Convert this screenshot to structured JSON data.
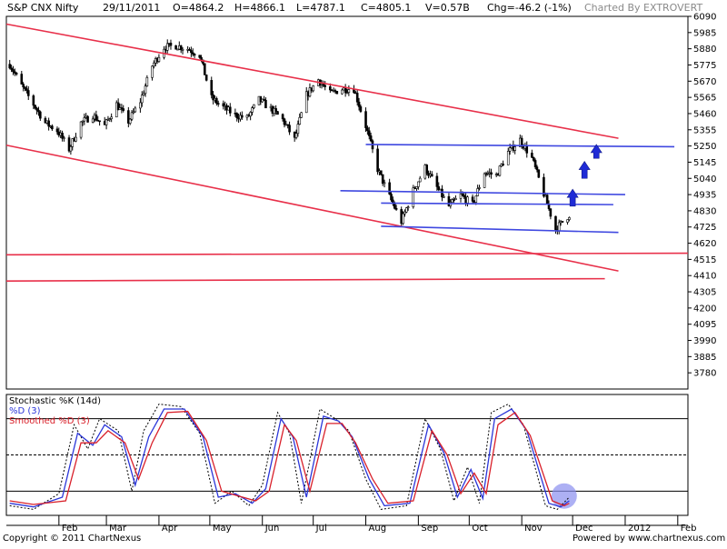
{
  "header": {
    "symbol": "S&P CNX Nifty",
    "date": "29/11/2011",
    "open": "O=4864.2",
    "high": "H=4866.1",
    "low": "L=4787.1",
    "close": "C=4805.1",
    "volume": "V=0.57B",
    "change": "Chg=-46.2 (-1%)",
    "credit": "Charted By EXTROVERT"
  },
  "footer": {
    "copyright": "Copyright © 2011 ChartNexus",
    "powered": "Powered by www.chartnexus.com"
  },
  "chart_data": [
    {
      "type": "candlestick",
      "ylim": [
        3675,
        6090
      ],
      "y_ticks": [
        3780,
        3885,
        3990,
        4095,
        4200,
        4305,
        4410,
        4515,
        4620,
        4725,
        4830,
        4935,
        5040,
        5145,
        5250,
        5355,
        5460,
        5565,
        5670,
        5775,
        5880,
        5985,
        6090
      ],
      "x_ticks": [
        "Feb",
        "Mar",
        "Apr",
        "May",
        "Jun",
        "Jul",
        "Aug",
        "Sep",
        "Oct",
        "Nov",
        "Dec",
        "2012",
        "Feb"
      ],
      "grid": false,
      "price_path": [
        [
          "2011-01-03",
          5780
        ],
        [
          "2011-01-10",
          5640
        ],
        [
          "2011-01-17",
          5520
        ],
        [
          "2011-01-24",
          5400
        ],
        [
          "2011-01-31",
          5350
        ],
        [
          "2011-02-07",
          5230
        ],
        [
          "2011-02-14",
          5400
        ],
        [
          "2011-02-21",
          5450
        ],
        [
          "2011-02-28",
          5380
        ],
        [
          "2011-03-07",
          5520
        ],
        [
          "2011-03-14",
          5410
        ],
        [
          "2011-03-21",
          5540
        ],
        [
          "2011-03-28",
          5770
        ],
        [
          "2011-04-04",
          5890
        ],
        [
          "2011-04-11",
          5900
        ],
        [
          "2011-04-18",
          5880
        ],
        [
          "2011-04-25",
          5840
        ],
        [
          "2011-05-02",
          5560
        ],
        [
          "2011-05-09",
          5500
        ],
        [
          "2011-05-16",
          5450
        ],
        [
          "2011-05-23",
          5430
        ],
        [
          "2011-05-30",
          5550
        ],
        [
          "2011-06-06",
          5490
        ],
        [
          "2011-06-13",
          5420
        ],
        [
          "2011-06-20",
          5290
        ],
        [
          "2011-06-27",
          5580
        ],
        [
          "2011-07-04",
          5680
        ],
        [
          "2011-07-11",
          5590
        ],
        [
          "2011-07-18",
          5620
        ],
        [
          "2011-07-25",
          5620
        ],
        [
          "2011-08-01",
          5380
        ],
        [
          "2011-08-08",
          5100
        ],
        [
          "2011-08-15",
          4920
        ],
        [
          "2011-08-22",
          4760
        ],
        [
          "2011-08-29",
          4960
        ],
        [
          "2011-09-05",
          5110
        ],
        [
          "2011-09-12",
          4980
        ],
        [
          "2011-09-19",
          4860
        ],
        [
          "2011-09-26",
          4930
        ],
        [
          "2011-10-03",
          4870
        ],
        [
          "2011-10-10",
          5080
        ],
        [
          "2011-10-17",
          5060
        ],
        [
          "2011-10-24",
          5210
        ],
        [
          "2011-10-31",
          5290
        ],
        [
          "2011-11-07",
          5170
        ],
        [
          "2011-11-14",
          4940
        ],
        [
          "2011-11-21",
          4710
        ],
        [
          "2011-11-29",
          4805
        ]
      ],
      "trendlines": [
        {
          "color": "#e8304a",
          "from": [
            "2011-01-01",
            6040
          ],
          "to": [
            "2011-12-28",
            5300
          ]
        },
        {
          "color": "#e8304a",
          "from": [
            "2011-01-01",
            5255
          ],
          "to": [
            "2011-12-28",
            4440
          ]
        },
        {
          "color": "#e8304a",
          "from": [
            "2011-01-01",
            4545
          ],
          "to": [
            "2012-02-07",
            4555
          ]
        },
        {
          "color": "#e8304a",
          "from": [
            "2011-01-01",
            4375
          ],
          "to": [
            "2011-12-20",
            4390
          ]
        },
        {
          "color": "#3f48e0",
          "from": [
            "2011-08-01",
            5260
          ],
          "to": [
            "2012-01-30",
            5245
          ]
        },
        {
          "color": "#3f48e0",
          "from": [
            "2011-07-17",
            4960
          ],
          "to": [
            "2012-01-01",
            4935
          ]
        },
        {
          "color": "#3f48e0",
          "from": [
            "2011-08-10",
            4880
          ],
          "to": [
            "2011-12-25",
            4870
          ]
        },
        {
          "color": "#3f48e0",
          "from": [
            "2011-08-10",
            4730
          ],
          "to": [
            "2011-12-28",
            4690
          ]
        }
      ],
      "arrows": [
        {
          "date": "2011-12-01",
          "from": 4860,
          "to": 4970
        },
        {
          "date": "2011-12-08",
          "from": 5040,
          "to": 5150
        },
        {
          "date": "2011-12-15",
          "from": 5170,
          "to": 5260
        }
      ],
      "colors": {
        "candle": "#000000",
        "red_line": "#e8304a",
        "blue_line": "#3f48e0",
        "arrow": "#1f2bd6"
      }
    },
    {
      "type": "line",
      "legend": [
        "Stochastic %K (14d)",
        "%D (3)",
        "Smoothed %D (3)"
      ],
      "ylim": [
        0,
        100
      ],
      "reference_lines": [
        20,
        50,
        80
      ],
      "series": [
        {
          "color": "#000000",
          "dashed": true,
          "values": [
            [
              "2011-01-03",
              8
            ],
            [
              "2011-01-17",
              5
            ],
            [
              "2011-02-01",
              18
            ],
            [
              "2011-02-10",
              75
            ],
            [
              "2011-02-18",
              55
            ],
            [
              "2011-02-25",
              80
            ],
            [
              "2011-03-08",
              70
            ],
            [
              "2011-03-16",
              20
            ],
            [
              "2011-03-23",
              70
            ],
            [
              "2011-04-01",
              92
            ],
            [
              "2011-04-14",
              90
            ],
            [
              "2011-04-25",
              68
            ],
            [
              "2011-05-04",
              10
            ],
            [
              "2011-05-14",
              20
            ],
            [
              "2011-05-24",
              8
            ],
            [
              "2011-06-01",
              25
            ],
            [
              "2011-06-10",
              85
            ],
            [
              "2011-06-17",
              68
            ],
            [
              "2011-06-24",
              10
            ],
            [
              "2011-07-05",
              88
            ],
            [
              "2011-07-14",
              80
            ],
            [
              "2011-07-22",
              70
            ],
            [
              "2011-08-01",
              30
            ],
            [
              "2011-08-10",
              5
            ],
            [
              "2011-08-25",
              8
            ],
            [
              "2011-09-05",
              80
            ],
            [
              "2011-09-14",
              55
            ],
            [
              "2011-09-22",
              12
            ],
            [
              "2011-09-30",
              40
            ],
            [
              "2011-10-07",
              10
            ],
            [
              "2011-10-14",
              85
            ],
            [
              "2011-10-24",
              92
            ],
            [
              "2011-11-02",
              75
            ],
            [
              "2011-11-15",
              8
            ],
            [
              "2011-11-22",
              5
            ],
            [
              "2011-11-29",
              15
            ]
          ]
        },
        {
          "color": "#2b36d9",
          "dashed": false,
          "values": [
            [
              "2011-01-03",
              10
            ],
            [
              "2011-01-17",
              7
            ],
            [
              "2011-02-03",
              15
            ],
            [
              "2011-02-12",
              68
            ],
            [
              "2011-02-21",
              58
            ],
            [
              "2011-02-28",
              75
            ],
            [
              "2011-03-10",
              65
            ],
            [
              "2011-03-18",
              25
            ],
            [
              "2011-03-26",
              65
            ],
            [
              "2011-04-04",
              88
            ],
            [
              "2011-04-16",
              88
            ],
            [
              "2011-04-27",
              65
            ],
            [
              "2011-05-06",
              15
            ],
            [
              "2011-05-16",
              18
            ],
            [
              "2011-05-26",
              10
            ],
            [
              "2011-06-03",
              22
            ],
            [
              "2011-06-12",
              80
            ],
            [
              "2011-06-19",
              65
            ],
            [
              "2011-06-27",
              15
            ],
            [
              "2011-07-07",
              82
            ],
            [
              "2011-07-16",
              78
            ],
            [
              "2011-07-24",
              65
            ],
            [
              "2011-08-03",
              30
            ],
            [
              "2011-08-12",
              8
            ],
            [
              "2011-08-27",
              10
            ],
            [
              "2011-09-07",
              75
            ],
            [
              "2011-09-16",
              52
            ],
            [
              "2011-09-24",
              15
            ],
            [
              "2011-10-02",
              38
            ],
            [
              "2011-10-09",
              14
            ],
            [
              "2011-10-16",
              80
            ],
            [
              "2011-10-26",
              88
            ],
            [
              "2011-11-04",
              70
            ],
            [
              "2011-11-17",
              10
            ],
            [
              "2011-11-24",
              7
            ],
            [
              "2011-11-29",
              12
            ]
          ]
        },
        {
          "color": "#d9202a",
          "dashed": false,
          "values": [
            [
              "2011-01-03",
              12
            ],
            [
              "2011-01-17",
              9
            ],
            [
              "2011-02-05",
              12
            ],
            [
              "2011-02-14",
              60
            ],
            [
              "2011-02-23",
              60
            ],
            [
              "2011-03-02",
              70
            ],
            [
              "2011-03-12",
              60
            ],
            [
              "2011-03-20",
              30
            ],
            [
              "2011-03-28",
              60
            ],
            [
              "2011-04-06",
              85
            ],
            [
              "2011-04-18",
              86
            ],
            [
              "2011-04-29",
              62
            ],
            [
              "2011-05-08",
              20
            ],
            [
              "2011-05-18",
              16
            ],
            [
              "2011-05-28",
              12
            ],
            [
              "2011-06-05",
              20
            ],
            [
              "2011-06-14",
              75
            ],
            [
              "2011-06-21",
              62
            ],
            [
              "2011-06-29",
              20
            ],
            [
              "2011-07-09",
              76
            ],
            [
              "2011-07-18",
              76
            ],
            [
              "2011-07-26",
              60
            ],
            [
              "2011-08-05",
              30
            ],
            [
              "2011-08-14",
              10
            ],
            [
              "2011-08-29",
              12
            ],
            [
              "2011-09-09",
              70
            ],
            [
              "2011-09-18",
              50
            ],
            [
              "2011-09-26",
              18
            ],
            [
              "2011-10-04",
              35
            ],
            [
              "2011-10-11",
              18
            ],
            [
              "2011-10-18",
              75
            ],
            [
              "2011-10-28",
              85
            ],
            [
              "2011-11-06",
              66
            ],
            [
              "2011-11-19",
              12
            ],
            [
              "2011-11-26",
              8
            ],
            [
              "2011-11-29",
              10
            ]
          ]
        }
      ],
      "highlight": {
        "date": "2011-11-26",
        "value": 10,
        "color": "#8a8ff0"
      }
    }
  ]
}
